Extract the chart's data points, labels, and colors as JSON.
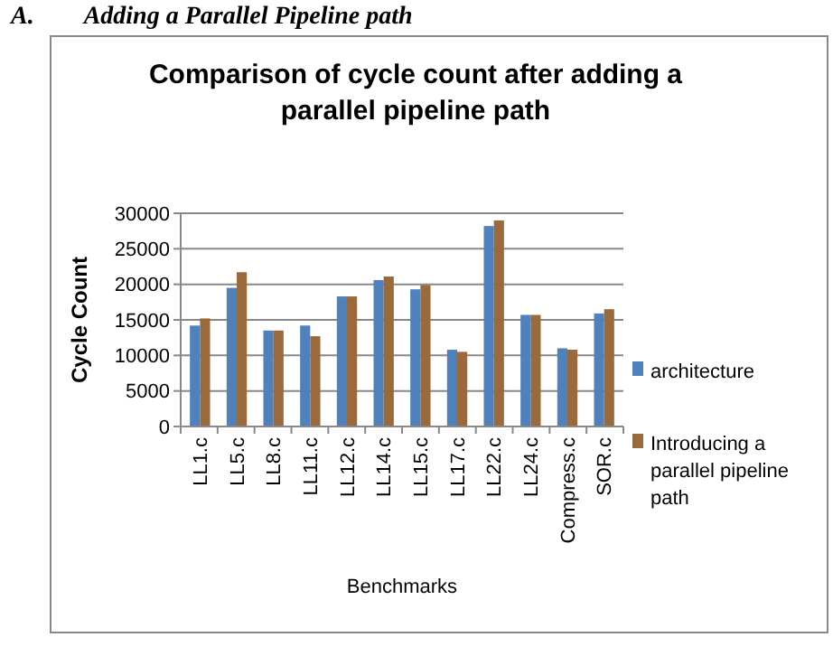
{
  "chart_data": {
    "type": "bar",
    "title": "Comparison of cycle count after adding a parallel pipeline path",
    "xlabel": "Benchmarks",
    "ylabel": "Cycle Count",
    "annotations": [
      "A.        Adding a Parallel Pipeline path"
    ],
    "categories": [
      "LL1.c",
      "LL5.c",
      "LL8.c",
      "LL11.c",
      "LL12.c",
      "LL14.c",
      "LL15.c",
      "LL17.c",
      "LL22.c",
      "LL24.c",
      "Compress.c",
      "SOR.c"
    ],
    "series": [
      {
        "name": "architecture",
        "color": "#4f81bd",
        "values": [
          14200,
          19500,
          13500,
          14200,
          18300,
          20600,
          19300,
          10800,
          28200,
          15700,
          11000,
          15900
        ]
      },
      {
        "name": "Introducing a parallel pipeline path",
        "color": "#9b6a3c",
        "values": [
          15200,
          21700,
          13500,
          12700,
          18300,
          21100,
          19900,
          10500,
          29000,
          15700,
          10800,
          16500
        ]
      }
    ],
    "ylim": [
      0,
      30000
    ],
    "yticks": [
      0,
      5000,
      10000,
      15000,
      20000,
      25000,
      30000
    ],
    "grid": "y",
    "legend": "right"
  }
}
